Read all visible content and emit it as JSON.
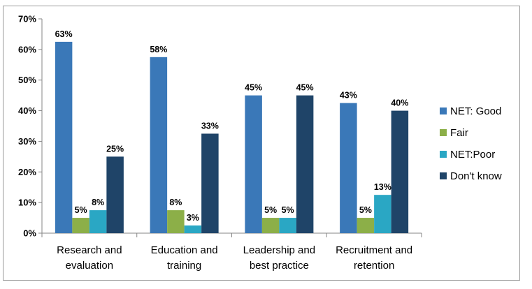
{
  "chart_data": {
    "type": "bar",
    "title": "",
    "xlabel": "",
    "ylabel": "",
    "ylim": [
      0,
      70
    ],
    "yticks": [
      0,
      10,
      20,
      30,
      40,
      50,
      60,
      70
    ],
    "ytick_labels": [
      "0%",
      "10%",
      "20%",
      "30%",
      "40%",
      "50%",
      "60%",
      "70%"
    ],
    "categories": [
      "Research and evaluation",
      "Education and training",
      "Leadership and best practice",
      "Recruitment and retention"
    ],
    "category_lines": [
      [
        "Research and",
        "evaluation"
      ],
      [
        "Education and",
        "training"
      ],
      [
        "Leadership and",
        "best practice"
      ],
      [
        "Recruitment and",
        "retention"
      ]
    ],
    "series": [
      {
        "name": "NET: Good",
        "color": "#3a78b8",
        "values": [
          62.5,
          57.5,
          45,
          42.5
        ],
        "labels": [
          "63%",
          "58%",
          "45%",
          "43%"
        ]
      },
      {
        "name": "Fair",
        "color": "#8caf48",
        "values": [
          5,
          7.5,
          5,
          5
        ],
        "labels": [
          "5%",
          "8%",
          "5%",
          "5%"
        ]
      },
      {
        "name": "NET:Poor",
        "color": "#2aa7c4",
        "values": [
          7.5,
          2.5,
          5,
          12.5
        ],
        "labels": [
          "8%",
          "3%",
          "5%",
          "13%"
        ]
      },
      {
        "name": "Don't know",
        "color": "#1f4468",
        "values": [
          25,
          32.5,
          45,
          40
        ],
        "labels": [
          "25%",
          "33%",
          "45%",
          "40%"
        ]
      }
    ],
    "legend_position": "right",
    "grid": false
  }
}
